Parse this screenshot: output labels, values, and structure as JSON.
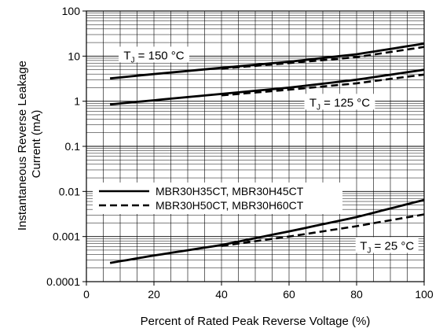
{
  "chart_data": {
    "type": "line",
    "title": "",
    "xlabel": "Percent of Rated Peak Reverse Voltage (%)",
    "ylabel_lines": [
      "Instantaneous Reverse Leakage",
      "Current (mA)"
    ],
    "xlim": [
      0,
      100
    ],
    "ylim": [
      0.0001,
      100
    ],
    "yscale": "log",
    "grid": true,
    "x_ticks": [
      0,
      20,
      40,
      60,
      80,
      100
    ],
    "x_tick_labels": [
      "0",
      "20",
      "40",
      "60",
      "80",
      "100"
    ],
    "y_ticks": [
      0.0001,
      0.001,
      0.01,
      0.1,
      1,
      10,
      100
    ],
    "y_tick_labels": [
      "0.0001",
      "0.001",
      "0.01",
      "0.1",
      "1",
      "10",
      "100"
    ],
    "legend": {
      "placement": "center-left",
      "entries": [
        {
          "label": "MBR30H35CT, MBR30H45CT",
          "style": "solid"
        },
        {
          "label": "MBR30H50CT, MBR30H60CT",
          "style": "dashed"
        }
      ]
    },
    "annotations": [
      {
        "prefix": "T",
        "sub": "J",
        "suffix": " = 150 °C",
        "x": 20,
        "y": 10
      },
      {
        "prefix": "T",
        "sub": "J",
        "suffix": " = 125 °C",
        "x": 75,
        "y": 0.9
      },
      {
        "prefix": "T",
        "sub": "J",
        "suffix": " = 25 °C",
        "x": 89,
        "y": 0.0006
      }
    ],
    "series": [
      {
        "style": "solid",
        "group": "150 °C",
        "x": [
          7,
          20,
          40,
          60,
          80,
          100
        ],
        "y": [
          3.2,
          4.0,
          5.5,
          7.5,
          11,
          19
        ]
      },
      {
        "style": "dashed",
        "group": "150 °C",
        "x": [
          40,
          60,
          80,
          100
        ],
        "y": [
          5.3,
          7.0,
          9.5,
          16
        ]
      },
      {
        "style": "solid",
        "group": "125 °C",
        "x": [
          7,
          20,
          40,
          60,
          80,
          100
        ],
        "y": [
          0.85,
          1.05,
          1.45,
          2.0,
          3.0,
          5.0
        ]
      },
      {
        "style": "dashed",
        "group": "125 °C",
        "x": [
          40,
          60,
          80,
          100
        ],
        "y": [
          1.35,
          1.8,
          2.5,
          3.9
        ]
      },
      {
        "style": "solid",
        "group": "25 °C",
        "x": [
          7,
          20,
          40,
          60,
          80,
          100
        ],
        "y": [
          0.00026,
          0.00038,
          0.00065,
          0.0013,
          0.0027,
          0.0065
        ]
      },
      {
        "style": "dashed",
        "group": "25 °C",
        "x": [
          40,
          60,
          80,
          100
        ],
        "y": [
          0.00062,
          0.001,
          0.0017,
          0.0031
        ]
      }
    ]
  }
}
